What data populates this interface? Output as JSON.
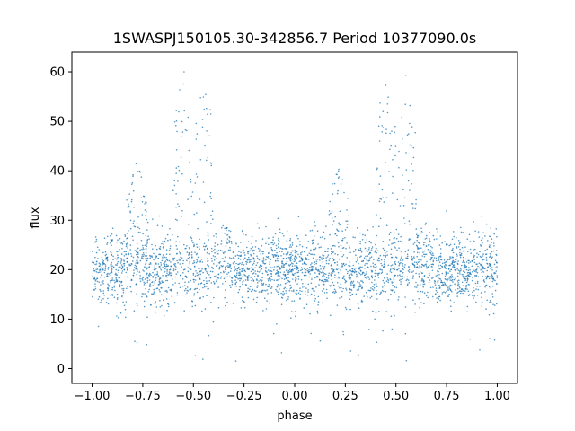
{
  "chart_data": {
    "type": "scatter",
    "title": "1SWASPJ150105.30-342856.7 Period 10377090.0s",
    "xlabel": "phase",
    "ylabel": "flux",
    "xlim": [
      -1.1,
      1.1
    ],
    "ylim": [
      -3,
      64
    ],
    "xticks": [
      -1.0,
      -0.75,
      -0.5,
      -0.25,
      0.0,
      0.25,
      0.5,
      0.75,
      1.0
    ],
    "xtick_labels": [
      "−1.00",
      "−0.75",
      "−0.50",
      "−0.25",
      "0.00",
      "0.25",
      "0.50",
      "0.75",
      "1.00"
    ],
    "yticks": [
      0,
      10,
      20,
      30,
      40,
      50,
      60
    ],
    "ytick_labels": [
      "0",
      "10",
      "20",
      "30",
      "40",
      "50",
      "60"
    ],
    "grid": false,
    "marker_color": "#1f77b4",
    "phase_range": [
      -1.0,
      1.0
    ],
    "baseline_flux": 20,
    "baseline_spread": 3.5,
    "flare_regions": [
      {
        "phase_center": -0.78,
        "peak_flux": 42
      },
      {
        "phase_center": -0.55,
        "peak_flux": 61
      },
      {
        "phase_center": -0.45,
        "peak_flux": 61
      },
      {
        "phase_center": -0.35,
        "peak_flux": 30
      },
      {
        "phase_center": 0.22,
        "peak_flux": 42
      },
      {
        "phase_center": 0.45,
        "peak_flux": 61
      },
      {
        "phase_center": 0.55,
        "peak_flux": 61
      },
      {
        "phase_center": 0.65,
        "peak_flux": 30
      }
    ]
  }
}
